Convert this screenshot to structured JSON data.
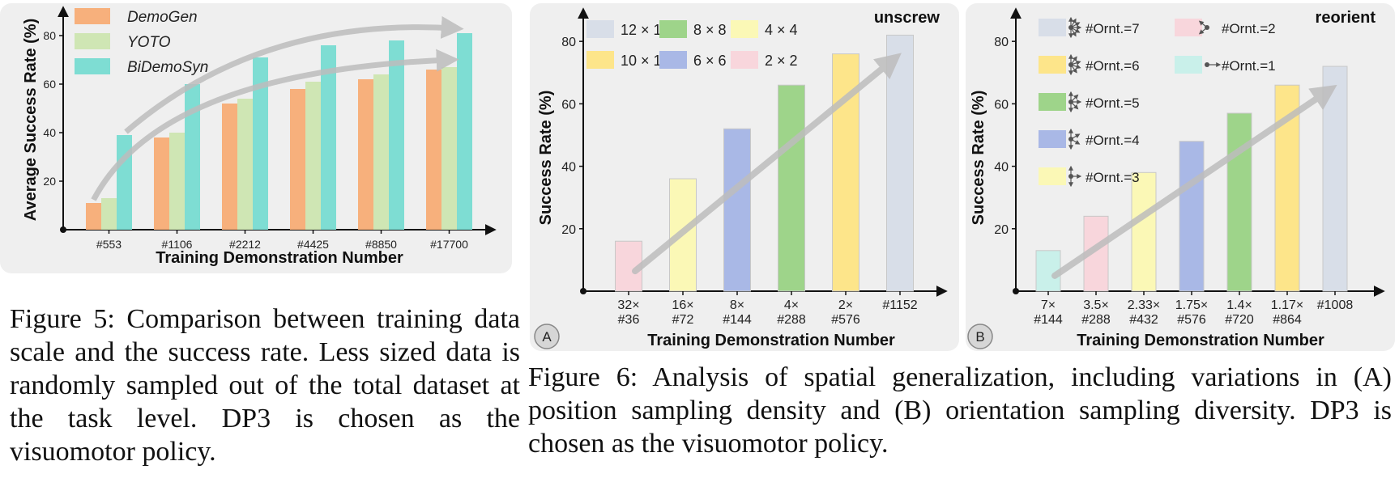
{
  "figure5": {
    "caption_label": "Figure 5:",
    "caption_text": "Comparison between training data scale and the success rate. Less sized data is randomly sampled out of the total dataset at the task level. DP3 is chosen as the visuomotor policy."
  },
  "figure6": {
    "caption_label": "Figure 6:",
    "caption_text": "Analysis of spatial generalization, including variations in (A) position sampling density and (B) orientation sampling diversity. DP3 is chosen as the visuomotor policy."
  },
  "colors": {
    "panel_bg": "#efefef",
    "demogen": "#f7b07c",
    "yoto": "#cfe6b4",
    "bidemosyn": "#7eddd3",
    "c12": "#d8dee8",
    "c10": "#fde58a",
    "c8": "#9ed48a",
    "c6": "#a9b8e6",
    "c4": "#fbf8b6",
    "c2": "#f8d6dc",
    "c1": "#c9f0ea"
  },
  "chart_data": [
    {
      "id": "fig5",
      "type": "bar",
      "xlabel": "Training Demonstration Number",
      "ylabel": "Average Success Rate (%)",
      "ylim": [
        0,
        88
      ],
      "yticks": [
        20,
        40,
        60,
        80
      ],
      "categories": [
        "#553",
        "#1106",
        "#2212",
        "#4425",
        "#8850",
        "#17700"
      ],
      "legend_position": "top-left",
      "series": [
        {
          "name": "DemoGen",
          "color": "#f7b07c",
          "values": [
            11,
            38,
            52,
            58,
            62,
            66
          ]
        },
        {
          "name": "YOTO",
          "color": "#cfe6b4",
          "values": [
            13,
            40,
            54,
            61,
            64,
            67
          ]
        },
        {
          "name": "BiDemoSyn",
          "color": "#7eddd3",
          "values": [
            39,
            60,
            71,
            76,
            78,
            81
          ]
        }
      ]
    },
    {
      "id": "fig6a",
      "type": "bar",
      "panel_label": "A",
      "corner_label": "unscrew",
      "xlabel": "Training Demonstration Number",
      "ylabel": "Success Rate (%)",
      "ylim": [
        0,
        86
      ],
      "yticks": [
        20,
        40,
        60,
        80
      ],
      "categories": [
        [
          "32×",
          "#36"
        ],
        [
          "16×",
          "#72"
        ],
        [
          "8×",
          "#144"
        ],
        [
          "4×",
          "#288"
        ],
        [
          "2×",
          "#576"
        ],
        [
          "",
          "#1152"
        ]
      ],
      "values": [
        16,
        36,
        52,
        66,
        76,
        82
      ],
      "bar_colors": [
        "#f8d6dc",
        "#fbf8b6",
        "#a9b8e6",
        "#9ed48a",
        "#fde58a",
        "#d8dee8"
      ],
      "legend_position": "top-left",
      "legend": [
        {
          "name": "12 × 12",
          "color": "#d8dee8"
        },
        {
          "name": "8 × 8",
          "color": "#9ed48a"
        },
        {
          "name": "4 × 4",
          "color": "#fbf8b6"
        },
        {
          "name": "10 × 10",
          "color": "#fde58a"
        },
        {
          "name": "6 × 6",
          "color": "#a9b8e6"
        },
        {
          "name": "2 × 2",
          "color": "#f8d6dc"
        }
      ]
    },
    {
      "id": "fig6b",
      "type": "bar",
      "panel_label": "B",
      "corner_label": "reorient",
      "xlabel": "Training Demonstration Number",
      "ylabel": "Success Rate (%)",
      "ylim": [
        0,
        86
      ],
      "yticks": [
        20,
        40,
        60,
        80
      ],
      "categories": [
        [
          "7×",
          "#144"
        ],
        [
          "3.5×",
          "#288"
        ],
        [
          "2.33×",
          "#432"
        ],
        [
          "1.75×",
          "#576"
        ],
        [
          "1.4×",
          "#720"
        ],
        [
          "1.17×",
          "#864"
        ],
        [
          "",
          "#1008"
        ]
      ],
      "values": [
        13,
        24,
        38,
        48,
        57,
        66,
        72
      ],
      "bar_colors": [
        "#c9f0ea",
        "#f8d6dc",
        "#fbf8b6",
        "#a9b8e6",
        "#9ed48a",
        "#fde58a",
        "#d8dee8"
      ],
      "legend_position": "top-left",
      "legend": [
        {
          "name": "#Ornt.=7",
          "color": "#d8dee8",
          "arrows": 7
        },
        {
          "name": "#Ornt.=2",
          "color": "#f8d6dc",
          "arrows": 2
        },
        {
          "name": "#Ornt.=6",
          "color": "#fde58a",
          "arrows": 6
        },
        {
          "name": "#Ornt.=1",
          "color": "#c9f0ea",
          "arrows": 1
        },
        {
          "name": "#Ornt.=5",
          "color": "#9ed48a",
          "arrows": 5
        },
        {
          "name": "#Ornt.=4",
          "color": "#a9b8e6",
          "arrows": 4
        },
        {
          "name": "#Ornt.=3",
          "color": "#fbf8b6",
          "arrows": 3
        }
      ]
    }
  ]
}
